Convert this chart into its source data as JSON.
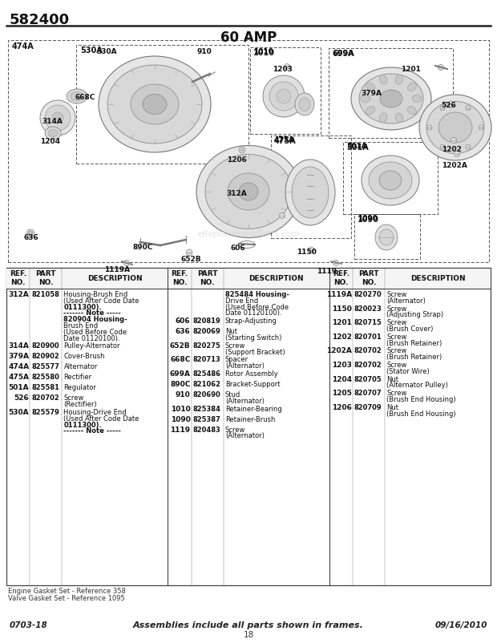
{
  "title": "582400",
  "subtitle": "60 AMP",
  "bg_color": "#ffffff",
  "col1_data": [
    [
      "312A",
      "821058",
      "Housing-Brush End\n(Used After Code Date\n0111300).\n------- Note -----\n820904 Housing-\nBrush End\n(Used Before Code\nDate 01120100)."
    ],
    [
      "314A",
      "820900",
      "Pulley-Alternator"
    ],
    [
      "379A",
      "820902",
      "Cover-Brush"
    ],
    [
      "474A",
      "825577",
      "Alternator"
    ],
    [
      "475A",
      "825580",
      "Rectifier"
    ],
    [
      "501A",
      "825581",
      "Regulator"
    ],
    [
      "526",
      "820702",
      "Screw\n(Rectifier)"
    ],
    [
      "530A",
      "825579",
      "Housing-Drive End\n(Used After Code Date\n0111300).\n------- Note -----"
    ]
  ],
  "col2_data": [
    [
      "",
      "",
      "825484 Housing-\nDrive End\n(Used Before Code\nDate 01120100)."
    ],
    [
      "606",
      "820819",
      "Strap-Adjusting"
    ],
    [
      "636",
      "820069",
      "Nut\n(Starting Switch)"
    ],
    [
      "652B",
      "820275",
      "Screw\n(Support Bracket)"
    ],
    [
      "668C",
      "820713",
      "Spacer\n(Alternator)"
    ],
    [
      "699A",
      "825486",
      "Rotor Assembly"
    ],
    [
      "890C",
      "821062",
      "Bracket-Support"
    ],
    [
      "910",
      "820690",
      "Stud\n(Alternator)"
    ],
    [
      "1010",
      "825384",
      "Retainer-Bearing"
    ],
    [
      "1090",
      "825387",
      "Retainer-Brush"
    ],
    [
      "1119",
      "820483",
      "Screw\n(Alternator)"
    ]
  ],
  "col3_data": [
    [
      "1119A",
      "820270",
      "Screw\n(Alternator)"
    ],
    [
      "1150",
      "820023",
      "Screw\n(Adjusting Strap)"
    ],
    [
      "1201",
      "820715",
      "Screw\n(Brush Cover)"
    ],
    [
      "1202",
      "820701",
      "Screw\n(Brush Retainer)"
    ],
    [
      "1202A",
      "820702",
      "Screw\n(Brush Retainer)"
    ],
    [
      "1203",
      "820702",
      "Screw\n(Stator Wire)"
    ],
    [
      "1204",
      "820705",
      "Nut\n(Alternator Pulley)"
    ],
    [
      "1205",
      "820707",
      "Screw\n(Brush End Housing)"
    ],
    [
      "1206",
      "820709",
      "Nut\n(Brush End Housing)"
    ]
  ],
  "footer_left": "0703-18",
  "footer_center": "Assemblies include all parts shown in frames.",
  "footer_right": "09/16/2010",
  "footer_page": "18",
  "note1": "Engine Gasket Set - Reference 358",
  "note2": "Valve Gasket Set - Reference 1095",
  "watermark": "eReplacementParts.com"
}
